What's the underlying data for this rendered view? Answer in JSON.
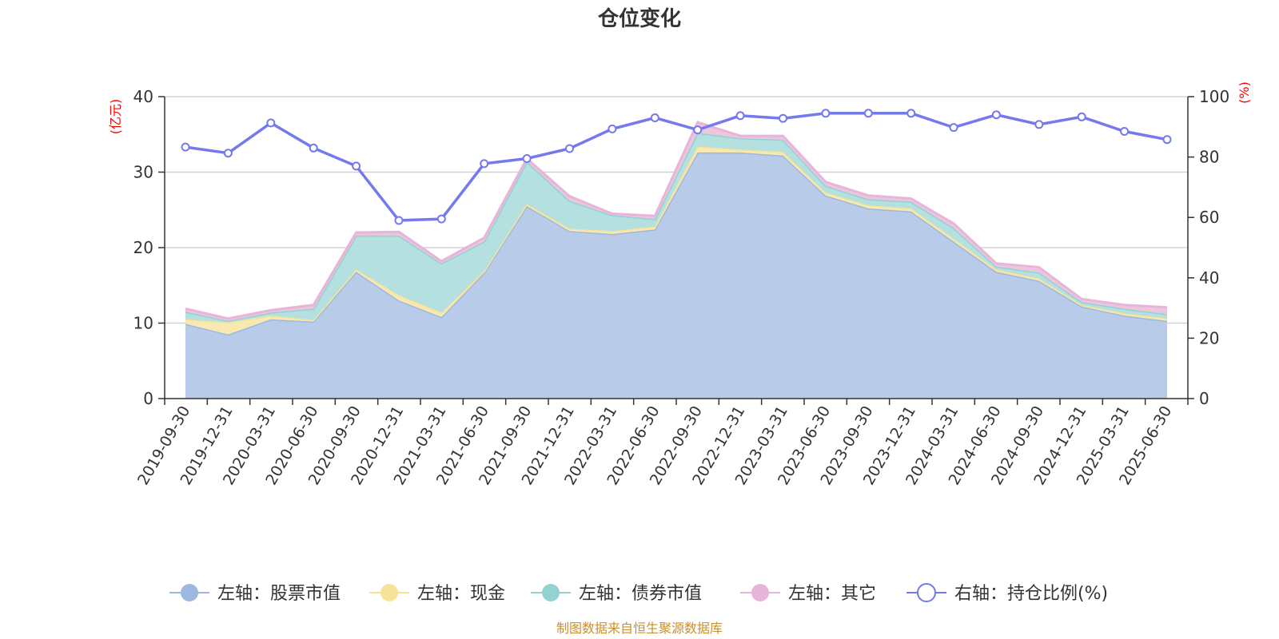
{
  "chart_data": {
    "type": "area",
    "title": "仓位变化",
    "left_unit": "(亿元)",
    "right_unit": "(%)",
    "categories": [
      "2019-09-30",
      "2019-12-31",
      "2020-03-31",
      "2020-06-30",
      "2020-09-30",
      "2020-12-31",
      "2021-03-31",
      "2021-06-30",
      "2021-09-30",
      "2021-12-31",
      "2022-03-31",
      "2022-06-30",
      "2022-09-30",
      "2022-12-31",
      "2023-03-31",
      "2023-06-30",
      "2023-09-30",
      "2023-12-31",
      "2024-03-31",
      "2024-06-30",
      "2024-09-30",
      "2024-12-31",
      "2025-03-31",
      "2025-06-30"
    ],
    "left_ylim": [
      0,
      40
    ],
    "left_ticks": [
      "0",
      "10",
      "20",
      "30",
      "40"
    ],
    "right_ylim": [
      0,
      100
    ],
    "right_ticks": [
      "0",
      "20",
      "40",
      "60",
      "80",
      "100"
    ],
    "stacked_series": [
      {
        "name": "左轴：股票市值",
        "color": "#9cb8e1",
        "fill": "#b8cce9",
        "values": [
          9.9,
          8.5,
          10.5,
          10.2,
          16.8,
          13.0,
          10.8,
          16.7,
          25.5,
          22.2,
          21.8,
          22.4,
          32.6,
          32.6,
          32.2,
          26.9,
          25.2,
          24.8,
          20.8,
          16.8,
          15.6,
          12.2,
          11.0,
          10.3
        ]
      },
      {
        "name": "左轴：现金",
        "color": "#f8e29a",
        "fill": "#f8e9b0",
        "values": [
          0.6,
          1.6,
          0.5,
          0.2,
          0.3,
          0.7,
          0.6,
          0.2,
          0.3,
          0.3,
          0.4,
          0.4,
          0.8,
          0.4,
          0.5,
          0.4,
          0.4,
          0.4,
          0.4,
          0.3,
          0.3,
          0.2,
          0.3,
          0.3
        ]
      },
      {
        "name": "左轴：债券市值",
        "color": "#93d2d1",
        "fill": "#b4e0df",
        "values": [
          1.0,
          0.2,
          0.4,
          1.5,
          4.5,
          7.9,
          6.5,
          3.9,
          5.6,
          3.7,
          2.1,
          1.0,
          1.8,
          1.5,
          1.6,
          0.9,
          0.8,
          0.9,
          1.4,
          0.4,
          0.8,
          0.4,
          0.6,
          0.6
        ]
      },
      {
        "name": "左轴：其它",
        "color": "#e8b4d9",
        "fill": "#ebc6df",
        "values": [
          0.4,
          0.3,
          0.3,
          0.5,
          0.4,
          0.5,
          0.3,
          0.5,
          0.4,
          0.6,
          0.2,
          0.4,
          1.4,
          0.3,
          0.5,
          0.5,
          0.5,
          0.4,
          0.6,
          0.4,
          0.7,
          0.4,
          0.5,
          0.9
        ]
      }
    ],
    "line_series": {
      "name": "右轴：持仓比例(%)",
      "color": "#7479ec",
      "values": [
        83.3,
        81.3,
        91.3,
        83.0,
        77.0,
        59.0,
        59.5,
        77.8,
        79.5,
        82.8,
        89.3,
        93.0,
        89.0,
        93.7,
        92.8,
        94.5,
        94.5,
        94.5,
        89.8,
        94.0,
        90.8,
        93.3,
        88.5,
        85.8
      ]
    },
    "grid": true,
    "legend_position": "bottom",
    "source": "制图数据来自恒生聚源数据库"
  }
}
